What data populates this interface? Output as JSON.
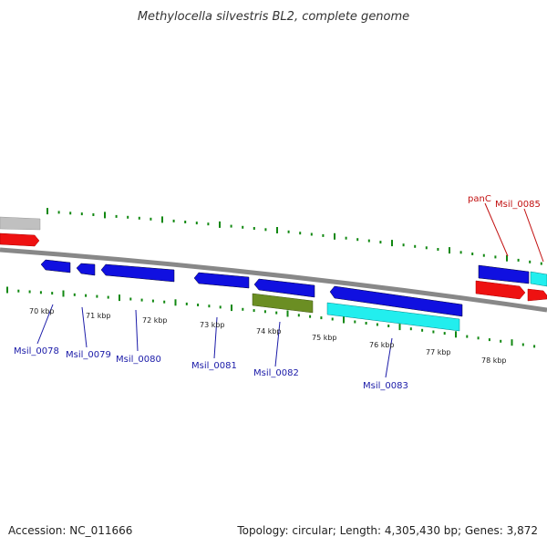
{
  "title": "Methylocella silvestris BL2, complete genome",
  "footer": {
    "accession": "Accession: NC_011666",
    "summary": "Topology: circular; Length: 4,305,430 bp; Genes: 3,872"
  },
  "colors": {
    "blue": "#1010e0",
    "red": "#ee1111",
    "cyan": "#22eeee",
    "olive": "#6b8e23",
    "gray": "#c0c0c0",
    "tick": "#118811",
    "backbone": "#888888",
    "label_blue": "#1a1aa8",
    "label_red": "#c21010"
  },
  "scale_labels": [
    "70 kbp",
    "71 kbp",
    "72 kbp",
    "73 kbp",
    "74 kbp",
    "75 kbp",
    "76 kbp",
    "77 kbp",
    "78 kbp"
  ],
  "gene_labels": [
    {
      "text": "Msil_0078",
      "color": "blue"
    },
    {
      "text": "Msil_0079",
      "color": "blue"
    },
    {
      "text": "Msil_0080",
      "color": "blue"
    },
    {
      "text": "Msil_0081",
      "color": "blue"
    },
    {
      "text": "Msil_0082",
      "color": "blue"
    },
    {
      "text": "Msil_0083",
      "color": "blue"
    },
    {
      "text": "panC",
      "color": "red"
    },
    {
      "text": "Msil_0085",
      "color": "red"
    }
  ]
}
